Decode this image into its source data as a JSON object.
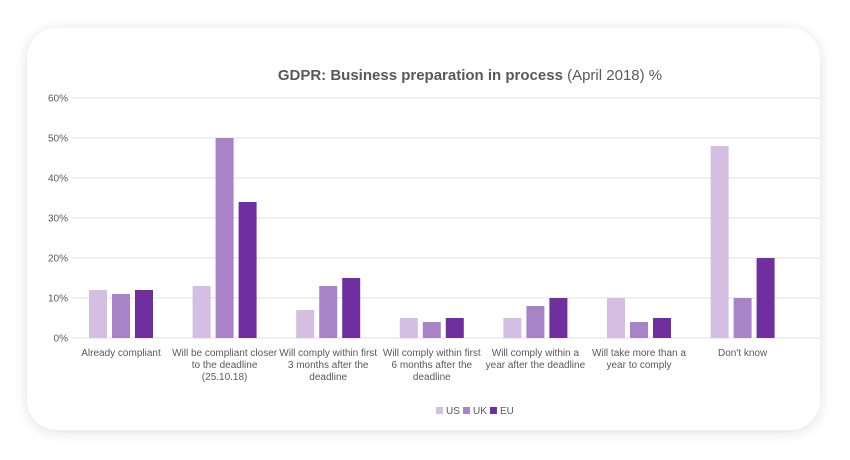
{
  "chart_data": {
    "type": "bar",
    "title": "GDPR: Business preparation in process",
    "title_suffix": "(April 2018) %",
    "categories": [
      [
        "Already compliant"
      ],
      [
        "Will be compliant closer",
        "to the deadline",
        "(25.10.18)"
      ],
      [
        "Will comply within first",
        "3 months after the",
        "deadline"
      ],
      [
        "Will comply within first",
        "6 months after the",
        "deadline"
      ],
      [
        "Will comply within a",
        "year after the deadline"
      ],
      [
        "Will take more than a",
        "year to comply"
      ],
      [
        "Don't know"
      ]
    ],
    "series": [
      {
        "name": "US",
        "color": "#d4bfe2",
        "values": [
          12,
          13,
          7,
          5,
          5,
          10,
          48
        ]
      },
      {
        "name": "UK",
        "color": "#a983c8",
        "values": [
          11,
          50,
          13,
          4,
          8,
          4,
          10
        ]
      },
      {
        "name": "EU",
        "color": "#6f2f9f",
        "values": [
          12,
          34,
          15,
          5,
          10,
          5,
          20
        ]
      }
    ],
    "ylim": [
      0,
      60
    ],
    "yticks": [
      "0%",
      "10%",
      "20%",
      "30%",
      "40%",
      "50%",
      "60%"
    ],
    "grid": true,
    "legend": "bottom"
  }
}
